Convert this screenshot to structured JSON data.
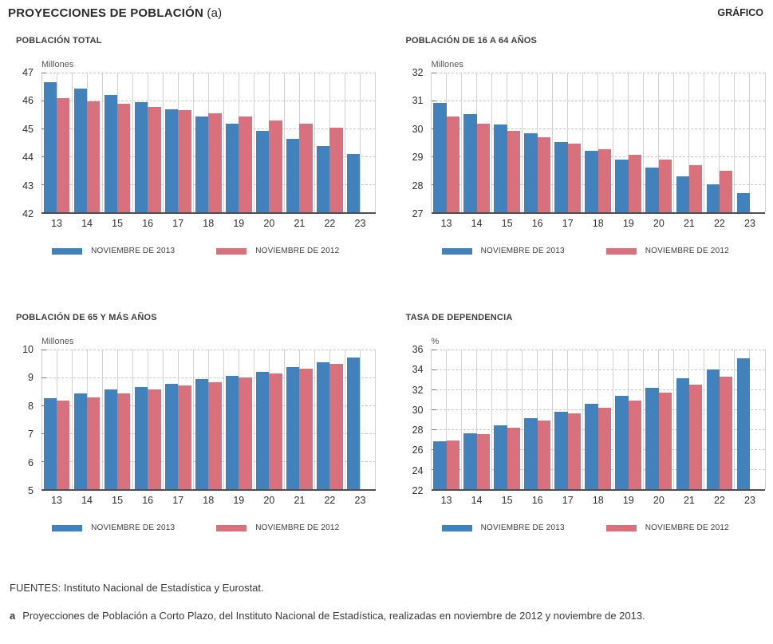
{
  "page": {
    "title": "PROYECCIONES DE POBLACIÓN",
    "title_note_marker": "(a)",
    "corner_label": "GRÁFICO",
    "sources": "FUENTES: Instituto Nacional de Estadística y Eurostat.",
    "footnote_marker": "a",
    "footnote_text": "Proyecciones de Población a Corto Plazo, del Instituto Nacional de Estadística, realizadas en noviembre de 2012 y noviembre de 2013."
  },
  "colors": {
    "series_2013": "#4182BD",
    "series_2012": "#D9717D",
    "vertical_gridline": "#d2d2d2",
    "horizontal_gridline": "#c6c6c6",
    "axis": "#4e4f52"
  },
  "legend": {
    "entries": [
      {
        "label": "NOVIEMBRE DE 2013",
        "color_key": "series_2013"
      },
      {
        "label": "NOVIEMBRE DE 2012",
        "color_key": "series_2012"
      }
    ]
  },
  "chart_data": [
    {
      "type": "bar",
      "title": "POBLACIÓN TOTAL",
      "unit": "Millones",
      "categories": [
        "13",
        "14",
        "15",
        "16",
        "17",
        "18",
        "19",
        "20",
        "21",
        "22",
        "23"
      ],
      "ylim": [
        42,
        47
      ],
      "yticks": [
        42,
        43,
        44,
        45,
        46,
        47
      ],
      "grid": {
        "horizontal": "dashed",
        "vertical": "solid"
      },
      "legend_position": "bottom",
      "series": [
        {
          "name": "NOVIEMBRE DE 2013",
          "values": [
            46.67,
            46.44,
            46.2,
            45.95,
            45.7,
            45.44,
            45.17,
            44.91,
            44.64,
            44.37,
            44.09
          ]
        },
        {
          "name": "NOVIEMBRE DE 2012",
          "values": [
            46.08,
            45.98,
            45.88,
            45.77,
            45.65,
            45.54,
            45.42,
            45.3,
            45.17,
            45.04,
            null
          ]
        }
      ]
    },
    {
      "type": "bar",
      "title": "POBLACIÓN DE 16 A 64 AÑOS",
      "unit": "Millones",
      "categories": [
        "13",
        "14",
        "15",
        "16",
        "17",
        "18",
        "19",
        "20",
        "21",
        "22",
        "23"
      ],
      "ylim": [
        27,
        32
      ],
      "yticks": [
        27,
        28,
        29,
        30,
        31,
        32
      ],
      "grid": {
        "horizontal": "dashed",
        "vertical": "solid"
      },
      "legend_position": "bottom",
      "series": [
        {
          "name": "NOVIEMBRE DE 2013",
          "values": [
            30.92,
            30.52,
            30.15,
            29.83,
            29.52,
            29.2,
            28.88,
            28.6,
            28.3,
            28.01,
            27.7
          ]
        },
        {
          "name": "NOVIEMBRE DE 2012",
          "values": [
            30.44,
            30.17,
            29.92,
            29.68,
            29.47,
            29.27,
            29.06,
            28.88,
            28.68,
            28.49,
            null
          ]
        }
      ]
    },
    {
      "type": "bar",
      "title": "POBLACIÓN DE 65 Y MÁS AÑOS",
      "unit": "Millones",
      "categories": [
        "13",
        "14",
        "15",
        "16",
        "17",
        "18",
        "19",
        "20",
        "21",
        "22",
        "23"
      ],
      "ylim": [
        5,
        10
      ],
      "yticks": [
        5,
        6,
        7,
        8,
        9,
        10
      ],
      "grid": {
        "horizontal": "dashed",
        "vertical": "solid"
      },
      "legend_position": "bottom",
      "series": [
        {
          "name": "NOVIEMBRE DE 2013",
          "values": [
            8.27,
            8.42,
            8.56,
            8.67,
            8.78,
            8.93,
            9.07,
            9.21,
            9.36,
            9.53,
            9.72
          ]
        },
        {
          "name": "NOVIEMBRE DE 2012",
          "values": [
            8.17,
            8.3,
            8.44,
            8.57,
            8.71,
            8.84,
            9.0,
            9.14,
            9.31,
            9.49,
            null
          ]
        }
      ]
    },
    {
      "type": "bar",
      "title": "TASA DE DEPENDENCIA",
      "unit": "%",
      "categories": [
        "13",
        "14",
        "15",
        "16",
        "17",
        "18",
        "19",
        "20",
        "21",
        "22",
        "23"
      ],
      "ylim": [
        22,
        36
      ],
      "yticks": [
        22,
        24,
        26,
        28,
        30,
        32,
        34,
        36
      ],
      "grid": {
        "horizontal": "dashed",
        "vertical": "solid"
      },
      "legend_position": "bottom",
      "series": [
        {
          "name": "NOVIEMBRE DE 2013",
          "values": [
            26.8,
            27.6,
            28.4,
            29.1,
            29.8,
            30.6,
            31.4,
            32.2,
            33.1,
            34.0,
            35.1
          ]
        },
        {
          "name": "NOVIEMBRE DE 2012",
          "values": [
            26.9,
            27.5,
            28.2,
            28.9,
            29.6,
            30.2,
            30.9,
            31.7,
            32.5,
            33.3,
            null
          ]
        }
      ]
    }
  ]
}
